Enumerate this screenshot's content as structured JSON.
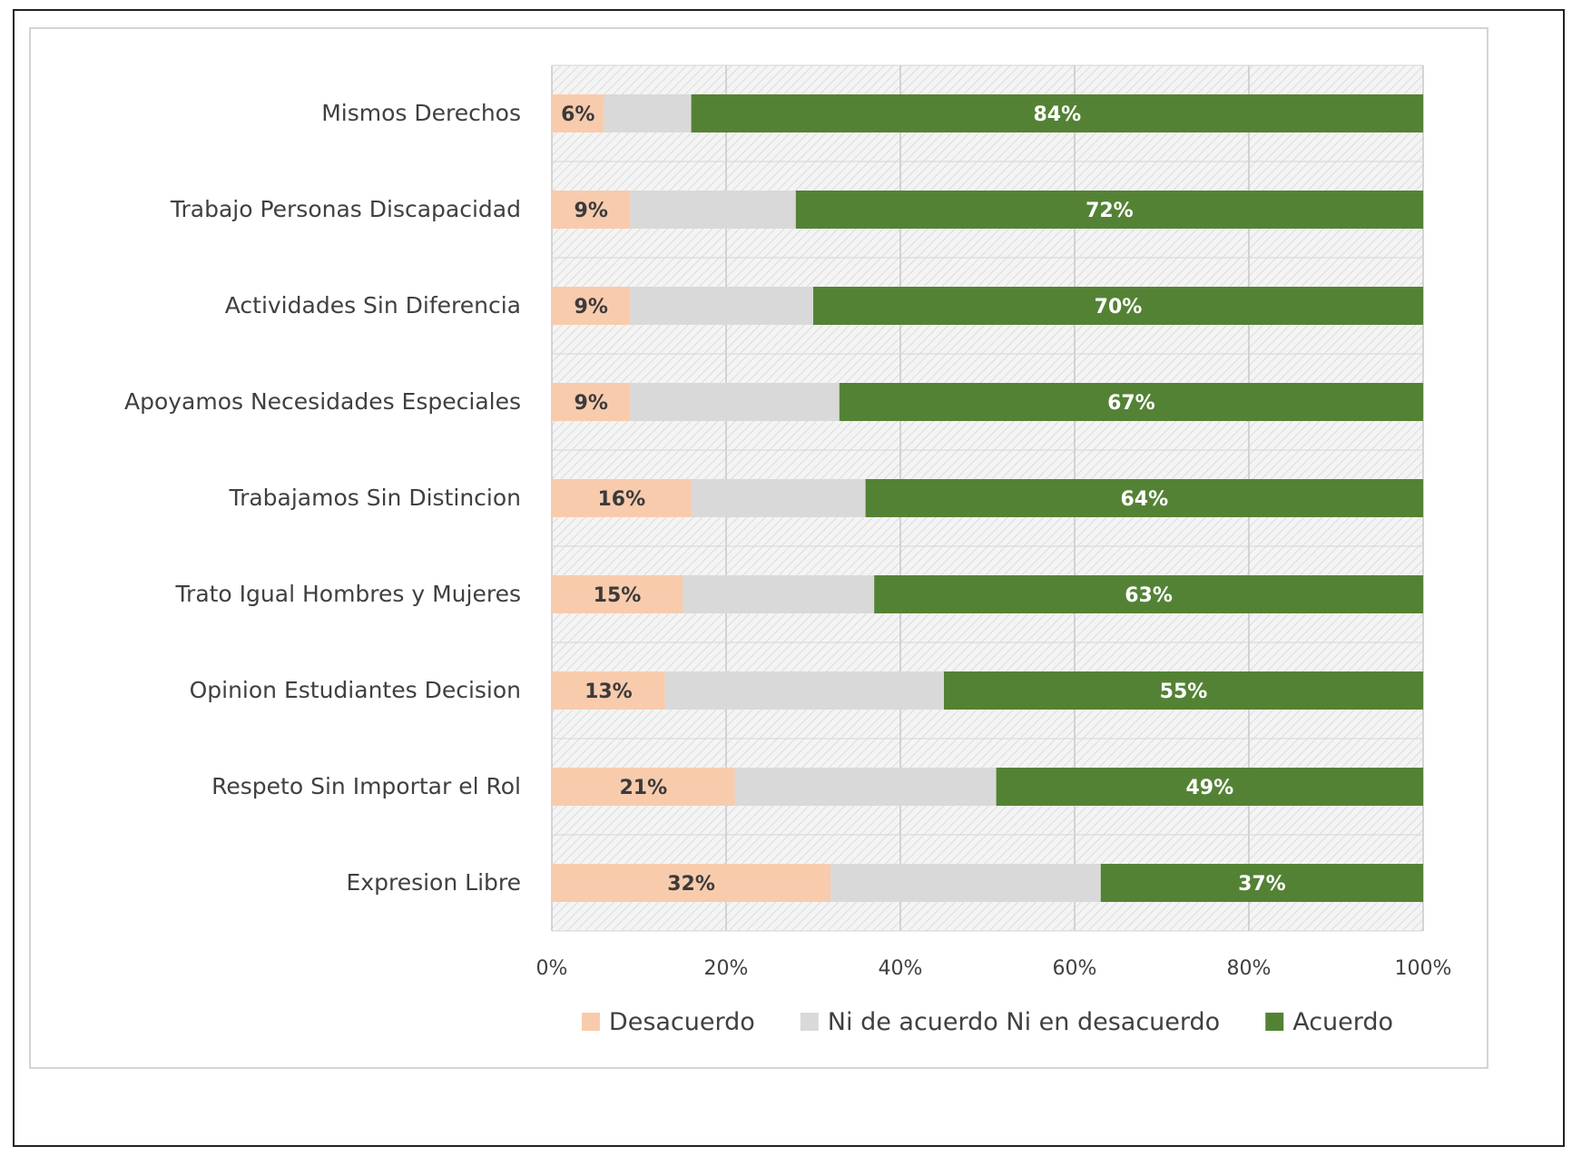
{
  "chart_data": {
    "type": "bar",
    "orientation": "horizontal",
    "stacked": true,
    "normalized": true,
    "categories": [
      "Mismos Derechos",
      "Trabajo Personas Discapacidad",
      "Actividades Sin Diferencia",
      "Apoyamos Necesidades Especiales",
      "Trabajamos Sin Distincion",
      "Trato Igual Hombres y Mujeres",
      "Opinion Estudiantes Decision",
      "Respeto Sin Importar el Rol",
      "Expresion Libre"
    ],
    "series": [
      {
        "name": "Desacuerdo",
        "color": "#f8cbad",
        "values": [
          6,
          9,
          9,
          9,
          16,
          15,
          13,
          21,
          32
        ],
        "labels": [
          "6%",
          "9%",
          "9%",
          "9%",
          "16%",
          "15%",
          "13%",
          "21%",
          "32%"
        ]
      },
      {
        "name": "Ni de acuerdo Ni en desacuerdo",
        "color": "#d9d9d9",
        "values": [
          10,
          19,
          21,
          24,
          20,
          22,
          32,
          30,
          31
        ],
        "labels": []
      },
      {
        "name": "Acuerdo",
        "color": "#548235",
        "values": [
          84,
          72,
          70,
          67,
          64,
          63,
          55,
          49,
          37
        ],
        "labels": [
          "84%",
          "72%",
          "70%",
          "67%",
          "64%",
          "63%",
          "55%",
          "49%",
          "37%"
        ]
      }
    ],
    "xlim": [
      0,
      100
    ],
    "xticks": [
      "0%",
      "20%",
      "40%",
      "60%",
      "80%",
      "100%"
    ],
    "grid": true,
    "legend": "bottom",
    "title": "",
    "xlabel": "",
    "ylabel": ""
  }
}
